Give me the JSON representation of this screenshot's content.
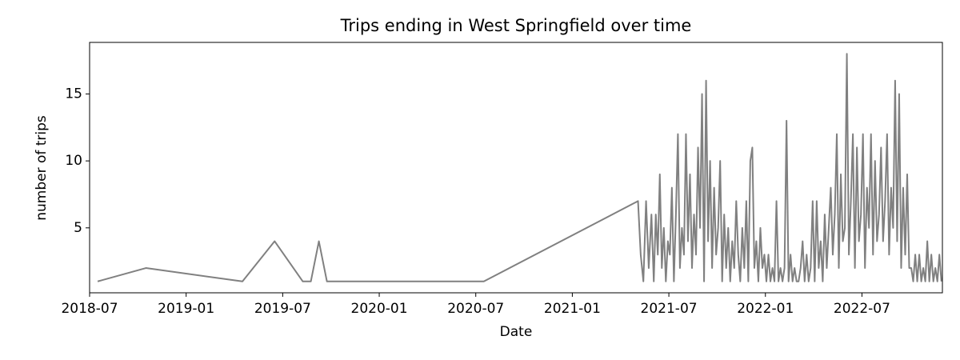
{
  "chart_data": {
    "type": "line",
    "title": "Trips ending in West Springfield over time",
    "xlabel": "Date",
    "ylabel": "number of trips",
    "color": "#808080",
    "xlim": [
      "2018-07",
      "2022-12"
    ],
    "xticks": [
      "2018-07",
      "2019-01",
      "2019-07",
      "2020-01",
      "2020-07",
      "2021-01",
      "2021-07",
      "2022-01",
      "2022-07"
    ],
    "ylim": [
      0.15,
      18.85
    ],
    "yticks": [
      5,
      10,
      15
    ],
    "x": [
      "2018-07",
      "2018-10",
      "2019-04",
      "2019-06",
      "2019-08",
      "2019-08",
      "2019-09",
      "2019-09",
      "2020-07",
      "2021-05",
      "2021-05",
      "2021-05",
      "2021-05",
      "2021-05",
      "2021-05",
      "2021-06",
      "2021-06",
      "2021-06",
      "2021-06",
      "2021-06",
      "2021-06",
      "2021-06",
      "2021-06",
      "2021-07",
      "2021-07",
      "2021-07",
      "2021-07",
      "2021-07",
      "2021-07",
      "2021-07",
      "2021-07",
      "2021-08",
      "2021-08",
      "2021-08",
      "2021-08",
      "2021-08",
      "2021-08",
      "2021-08",
      "2021-08",
      "2021-09",
      "2021-09",
      "2021-09",
      "2021-09",
      "2021-09",
      "2021-09",
      "2021-09",
      "2021-09",
      "2021-10",
      "2021-10",
      "2021-10",
      "2021-10",
      "2021-10",
      "2021-10",
      "2021-10",
      "2021-10",
      "2021-11",
      "2021-11",
      "2021-11",
      "2021-11",
      "2021-11",
      "2021-11",
      "2021-11",
      "2021-11",
      "2021-12",
      "2021-12",
      "2021-12",
      "2021-12",
      "2021-12",
      "2021-12",
      "2021-12",
      "2021-12",
      "2022-01",
      "2022-01",
      "2022-01",
      "2022-01",
      "2022-01",
      "2022-01",
      "2022-01",
      "2022-01",
      "2022-02",
      "2022-02",
      "2022-02",
      "2022-02",
      "2022-02",
      "2022-02",
      "2022-02",
      "2022-02",
      "2022-03",
      "2022-03",
      "2022-03",
      "2022-03",
      "2022-03",
      "2022-03",
      "2022-03",
      "2022-03",
      "2022-04",
      "2022-04",
      "2022-04",
      "2022-04",
      "2022-04",
      "2022-04",
      "2022-04",
      "2022-04",
      "2022-05",
      "2022-05",
      "2022-05",
      "2022-05",
      "2022-05",
      "2022-05",
      "2022-05",
      "2022-05",
      "2022-06",
      "2022-06",
      "2022-06",
      "2022-06",
      "2022-06",
      "2022-06",
      "2022-06",
      "2022-06",
      "2022-07",
      "2022-07",
      "2022-07",
      "2022-07",
      "2022-07",
      "2022-07",
      "2022-07",
      "2022-07",
      "2022-08",
      "2022-08",
      "2022-08",
      "2022-08",
      "2022-08",
      "2022-08",
      "2022-08",
      "2022-08",
      "2022-09",
      "2022-09",
      "2022-09",
      "2022-09",
      "2022-09",
      "2022-09",
      "2022-09",
      "2022-09",
      "2022-10",
      "2022-10",
      "2022-10",
      "2022-10",
      "2022-10",
      "2022-10",
      "2022-10",
      "2022-10",
      "2022-11",
      "2022-11",
      "2022-11",
      "2022-11",
      "2022-11",
      "2022-11",
      "2022-11",
      "2022-11"
    ],
    "values": [
      1,
      2,
      1,
      4,
      1,
      1,
      4,
      1,
      1,
      7,
      3,
      1,
      7,
      2,
      6,
      1,
      6,
      3,
      9,
      2,
      5,
      1,
      4,
      3,
      8,
      1,
      6,
      12,
      2,
      5,
      3,
      12,
      4,
      9,
      2,
      6,
      3,
      11,
      5,
      15,
      1,
      16,
      4,
      10,
      2,
      8,
      3,
      5,
      10,
      1,
      6,
      2,
      5,
      1,
      4,
      2,
      7,
      3,
      1,
      5,
      2,
      7,
      1,
      10,
      11,
      2,
      4,
      1,
      5,
      2,
      3,
      1,
      3,
      1,
      2,
      1,
      7,
      1,
      2,
      1,
      2,
      13,
      1,
      3,
      1,
      2,
      1,
      1,
      2,
      4,
      1,
      3,
      1,
      2,
      7,
      1,
      7,
      2,
      4,
      1,
      6,
      2,
      5,
      8,
      3,
      6,
      12,
      2,
      9,
      4,
      5,
      18,
      3,
      7,
      12,
      2,
      11,
      4,
      6,
      12,
      2,
      8,
      5,
      12,
      3,
      10,
      4,
      6,
      11,
      4,
      7,
      12,
      3,
      8,
      5,
      16,
      4,
      15,
      2,
      8,
      3,
      9,
      2,
      2,
      1,
      3,
      1,
      3,
      1,
      2,
      1,
      4,
      1,
      3,
      1,
      2,
      1,
      3,
      1
    ]
  }
}
